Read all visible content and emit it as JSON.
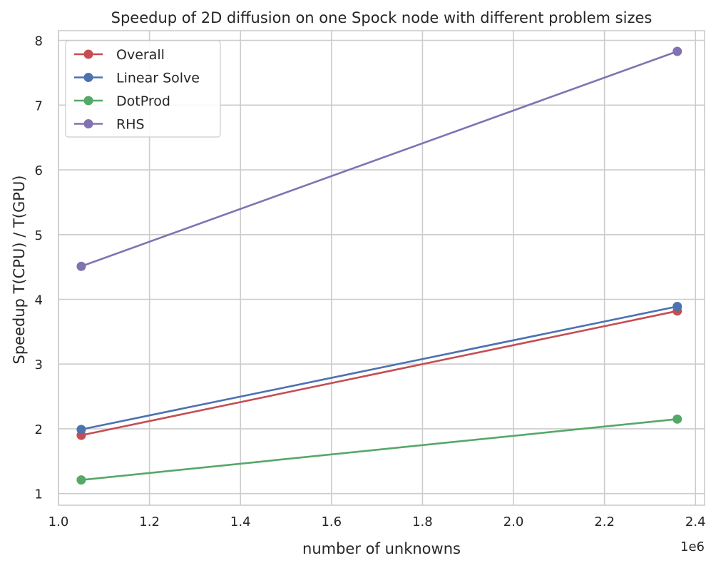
{
  "chart_data": {
    "type": "line",
    "title": "Speedup of 2D diffusion on one Spock node with different problem sizes",
    "xlabel": "number of unknowns",
    "ylabel": "Speedup T(CPU) / T(GPU)",
    "x_offset_label": "1e6",
    "x_scale": 1000000,
    "x": [
      1050000,
      2360000
    ],
    "xlim": [
      1000000,
      2420000
    ],
    "ylim": [
      0.82,
      8.15
    ],
    "xticks": [
      1000000,
      1200000,
      1400000,
      1600000,
      1800000,
      2000000,
      2200000,
      2400000
    ],
    "xtick_labels": [
      "1.0",
      "1.2",
      "1.4",
      "1.6",
      "1.8",
      "2.0",
      "2.2",
      "2.4"
    ],
    "yticks": [
      1,
      2,
      3,
      4,
      5,
      6,
      7,
      8
    ],
    "ytick_labels": [
      "1",
      "2",
      "3",
      "4",
      "5",
      "6",
      "7",
      "8"
    ],
    "grid": true,
    "legend_position": "top-left",
    "series": [
      {
        "name": "Overall",
        "color": "#c44e52",
        "values": [
          1.9,
          3.82
        ]
      },
      {
        "name": "Linear Solve",
        "color": "#4c72b0",
        "values": [
          1.99,
          3.89
        ]
      },
      {
        "name": "DotProd",
        "color": "#55a868",
        "values": [
          1.21,
          2.15
        ]
      },
      {
        "name": "RHS",
        "color": "#8172b2",
        "values": [
          4.51,
          7.83
        ]
      }
    ]
  }
}
